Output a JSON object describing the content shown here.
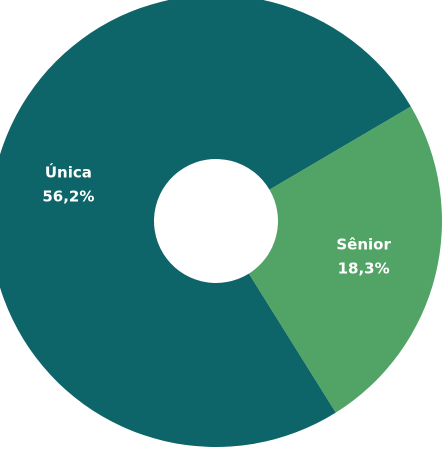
{
  "chart_data": {
    "type": "donut",
    "categories": [
      "Única",
      "Sênior"
    ],
    "values": [
      56.2,
      18.3
    ],
    "value_labels": [
      "56,2%",
      "18,3%"
    ],
    "colors": [
      "#0d6469",
      "#52a466"
    ]
  }
}
